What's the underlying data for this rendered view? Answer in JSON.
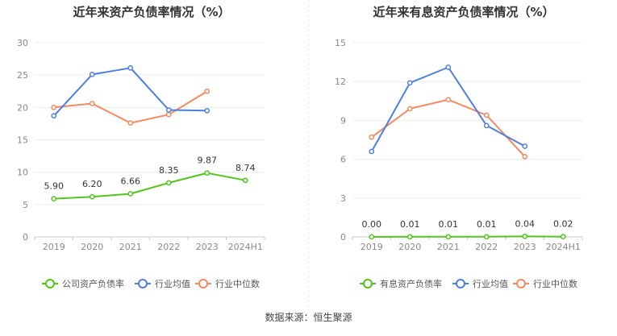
{
  "chart_data": [
    {
      "type": "line",
      "title": "近年来资产负债率情况（%）",
      "categories": [
        "2019",
        "2020",
        "2021",
        "2022",
        "2023",
        "2024H1"
      ],
      "ylim": [
        0,
        30
      ],
      "yticks": [
        "0",
        "5",
        "10",
        "15",
        "20",
        "25",
        "30"
      ],
      "series": [
        {
          "name": "公司资产负债率",
          "color": "#52c41a",
          "values": [
            5.9,
            6.2,
            6.66,
            8.35,
            9.87,
            8.74
          ],
          "labels": [
            "5.90",
            "6.20",
            "6.66",
            "8.35",
            "9.87",
            "8.74"
          ]
        },
        {
          "name": "行业均值",
          "color": "#4e7fe0",
          "values": [
            18.7,
            25.1,
            26.1,
            19.6,
            19.5,
            null
          ]
        },
        {
          "name": "行业中位数",
          "color": "#f5895f",
          "values": [
            20.0,
            20.6,
            17.6,
            18.9,
            22.5,
            null
          ]
        }
      ]
    },
    {
      "type": "line",
      "title": "近年来有息资产负债率情况（%）",
      "categories": [
        "2019",
        "2020",
        "2021",
        "2022",
        "2023",
        "2024H1"
      ],
      "ylim": [
        0,
        15
      ],
      "yticks": [
        "0",
        "3",
        "6",
        "9",
        "12",
        "15"
      ],
      "series": [
        {
          "name": "有息资产负债率",
          "color": "#52c41a",
          "values": [
            0.0,
            0.01,
            0.01,
            0.01,
            0.04,
            0.02
          ],
          "labels": [
            "0.00",
            "0.01",
            "0.01",
            "0.01",
            "0.04",
            "0.02"
          ]
        },
        {
          "name": "行业均值",
          "color": "#4e7fe0",
          "values": [
            6.6,
            11.9,
            13.1,
            8.6,
            7.0,
            null
          ]
        },
        {
          "name": "行业中位数",
          "color": "#f5895f",
          "values": [
            7.7,
            9.9,
            10.6,
            9.4,
            6.2,
            null
          ]
        }
      ]
    }
  ],
  "footer": {
    "source": "数据来源：恒生聚源"
  }
}
